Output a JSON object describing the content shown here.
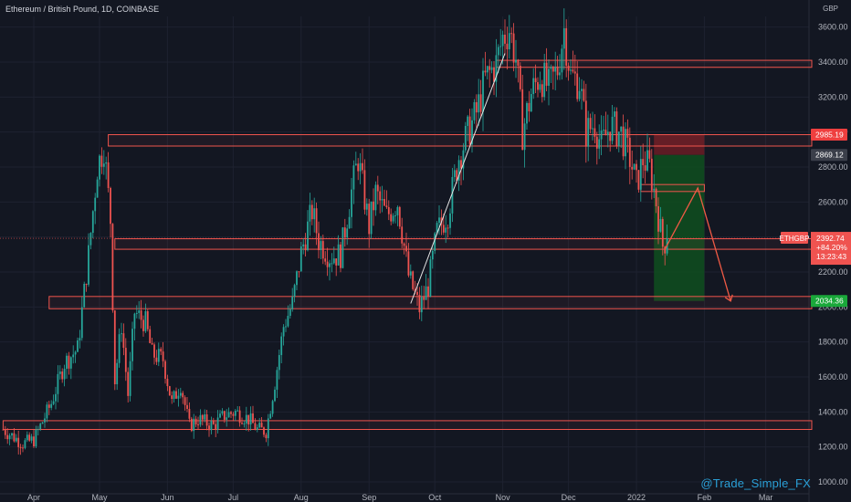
{
  "header": {
    "title": "Ethereum / British Pound, 1D, COINBASE",
    "currency": "GBP"
  },
  "watermark": "@Trade_Simple_FX",
  "colors": {
    "background": "#131722",
    "grid": "#1e2230",
    "up": "#26a69a",
    "down": "#ef5350",
    "zone_stroke": "#f0554d",
    "target_fill": "#0f4f1e",
    "stop_fill": "#6b1c24"
  },
  "chart_data": {
    "type": "candlestick",
    "title": "Ethereum / British Pound, 1D, COINBASE",
    "y_axis_unit": "GBP",
    "ylim": [
      1000,
      3700
    ],
    "y_ticks": [
      1000,
      1200,
      1400,
      1600,
      1800,
      2000,
      2200,
      2400,
      2600,
      2800,
      3000,
      3200,
      3400,
      3600
    ],
    "y_tick_labels": [
      "1000.00",
      "1200.00",
      "1400.00",
      "1600.00",
      "1800.00",
      "2000.00",
      "2200.00",
      "2400.00",
      "2600.00",
      "2800.00",
      "3000.00",
      "3200.00",
      "3400.00",
      "3600.00"
    ],
    "x_labels": [
      {
        "label": "Apr",
        "day": 0
      },
      {
        "label": "May",
        "day": 30
      },
      {
        "label": "Jun",
        "day": 61
      },
      {
        "label": "Jul",
        "day": 91
      },
      {
        "label": "Aug",
        "day": 122
      },
      {
        "label": "Sep",
        "day": 153
      },
      {
        "label": "Oct",
        "day": 183
      },
      {
        "label": "Nov",
        "day": 214
      },
      {
        "label": "Dec",
        "day": 244
      },
      {
        "label": "2022",
        "day": 275
      },
      {
        "label": "Feb",
        "day": 306
      },
      {
        "label": "Mar",
        "day": 334
      }
    ],
    "price_path": [
      [
        -14,
        1300
      ],
      [
        -5,
        1220
      ],
      [
        0,
        1240
      ],
      [
        8,
        1450
      ],
      [
        14,
        1680
      ],
      [
        20,
        1760
      ],
      [
        25,
        2300
      ],
      [
        29,
        2800
      ],
      [
        32,
        2920
      ],
      [
        35,
        2500
      ],
      [
        37,
        1580
      ],
      [
        40,
        1900
      ],
      [
        43,
        1500
      ],
      [
        46,
        1970
      ],
      [
        51,
        1910
      ],
      [
        54,
        1730
      ],
      [
        59,
        1700
      ],
      [
        63,
        1450
      ],
      [
        67,
        1560
      ],
      [
        71,
        1320
      ],
      [
        75,
        1360
      ],
      [
        82,
        1320
      ],
      [
        87,
        1380
      ],
      [
        92,
        1400
      ],
      [
        98,
        1360
      ],
      [
        102,
        1300
      ],
      [
        106,
        1290
      ],
      [
        110,
        1570
      ],
      [
        114,
        1890
      ],
      [
        118,
        2020
      ],
      [
        122,
        2310
      ],
      [
        127,
        2550
      ],
      [
        130,
        2380
      ],
      [
        135,
        2290
      ],
      [
        140,
        2300
      ],
      [
        145,
        2660
      ],
      [
        148,
        2850
      ],
      [
        153,
        2460
      ],
      [
        156,
        2650
      ],
      [
        161,
        2520
      ],
      [
        166,
        2600
      ],
      [
        171,
        2180
      ],
      [
        176,
        1990
      ],
      [
        180,
        2120
      ],
      [
        184,
        2430
      ],
      [
        189,
        2540
      ],
      [
        194,
        2860
      ],
      [
        198,
        2990
      ],
      [
        202,
        3110
      ],
      [
        206,
        3300
      ],
      [
        211,
        3390
      ],
      [
        214,
        3540
      ],
      [
        217,
        3590
      ],
      [
        220,
        3420
      ],
      [
        223,
        3000
      ],
      [
        227,
        3220
      ],
      [
        231,
        3330
      ],
      [
        235,
        3250
      ],
      [
        239,
        3360
      ],
      [
        242,
        3590
      ],
      [
        245,
        3320
      ],
      [
        249,
        3290
      ],
      [
        252,
        3000
      ],
      [
        256,
        3050
      ],
      [
        259,
        2920
      ],
      [
        263,
        3040
      ],
      [
        268,
        2990
      ],
      [
        272,
        2850
      ],
      [
        275,
        2700
      ],
      [
        278,
        2840
      ],
      [
        281,
        2800
      ],
      [
        284,
        2600
      ],
      [
        287,
        2350
      ],
      [
        289,
        2393
      ]
    ],
    "zones": [
      {
        "name": "zone-3400",
        "y_low": 3370,
        "y_high": 3410,
        "x_from": 211,
        "x_to": 355
      },
      {
        "name": "zone-2950",
        "y_low": 2920,
        "y_high": 2985,
        "x_from": 34,
        "x_to": 355
      },
      {
        "name": "zone-2700",
        "y_low": 2660,
        "y_high": 2700,
        "x_from": 277,
        "x_to": 306
      },
      {
        "name": "zone-2350",
        "y_low": 2330,
        "y_high": 2390,
        "x_from": 37,
        "x_to": 355
      },
      {
        "name": "zone-2034",
        "y_low": 1990,
        "y_high": 2060,
        "x_from": 7,
        "x_to": 355
      },
      {
        "name": "zone-1300",
        "y_low": 1300,
        "y_high": 1350,
        "x_from": -14,
        "x_to": 355
      }
    ],
    "trendline": {
      "from": [
        172,
        2020
      ],
      "to": [
        215,
        3450
      ]
    },
    "position": {
      "x_from": 283,
      "x_to": 306,
      "entry": 2869.12,
      "stop": 2985.19,
      "target": 2034.36
    },
    "projection": [
      [
        288,
        2330
      ],
      [
        303,
        2680
      ],
      [
        318,
        2034
      ]
    ],
    "price_labels": [
      {
        "kind": "stop",
        "value": 2985.19,
        "text": "2985.19"
      },
      {
        "kind": "entry",
        "value": 2869.12,
        "text": "2869.12"
      },
      {
        "kind": "target",
        "value": 2034.36,
        "text": "2034.36"
      }
    ],
    "current": {
      "symbol": "ETHGBP",
      "price": 2392.74,
      "price_text": "2392.74",
      "change_text": "+84.20%",
      "countdown": "13:23:43"
    }
  }
}
